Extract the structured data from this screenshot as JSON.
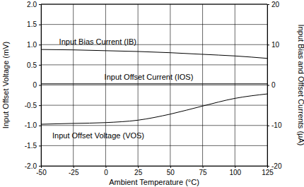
{
  "chart_data": {
    "type": "line",
    "x_label": "Ambient Temperature (°C)",
    "y_label": "Input Offset Voltage (mV)",
    "y2_label": "Input Bias and Offset Currents (µA)",
    "x": [
      -50,
      -25,
      0,
      25,
      50,
      75,
      100,
      125
    ],
    "xlim": [
      -50,
      125
    ],
    "xticks": [
      -50,
      -25,
      0,
      25,
      50,
      75,
      100,
      125
    ],
    "ylim": [
      -2,
      2
    ],
    "yticks": [
      {
        "value": 2,
        "label": "2.0"
      },
      {
        "value": 1.5,
        "label": "1.5"
      },
      {
        "value": 1,
        "label": "1.0"
      },
      {
        "value": 0.5,
        "label": "0.5"
      },
      {
        "value": 0,
        "label": "0"
      },
      {
        "value": -0.5,
        "label": "-0.5"
      },
      {
        "value": -1,
        "label": "-1.0"
      },
      {
        "value": -1.5,
        "label": "-1.5"
      },
      {
        "value": -2,
        "label": "-2.0"
      }
    ],
    "y2lim": [
      -20,
      20
    ],
    "y2ticks": [
      20,
      10,
      0,
      -10,
      -20
    ],
    "grid": true,
    "series": [
      {
        "name": "Input Bias Current (IB)",
        "color": "#000000",
        "axis": "y2",
        "values": [
          8.8,
          8.7,
          8.5,
          8.3,
          8.0,
          7.6,
          7.2,
          6.6
        ]
      },
      {
        "name": "Input Offset Current (IOS)",
        "color": "#000000",
        "axis": "y2",
        "values": [
          0.3,
          0.3,
          0.3,
          0.3,
          0.3,
          0.3,
          0.3,
          0.3
        ]
      },
      {
        "name": "Input Offset Voltage (VOS)",
        "color": "#000000",
        "values": [
          -0.97,
          -0.95,
          -0.93,
          -0.87,
          -0.72,
          -0.52,
          -0.33,
          -0.22
        ]
      }
    ]
  }
}
